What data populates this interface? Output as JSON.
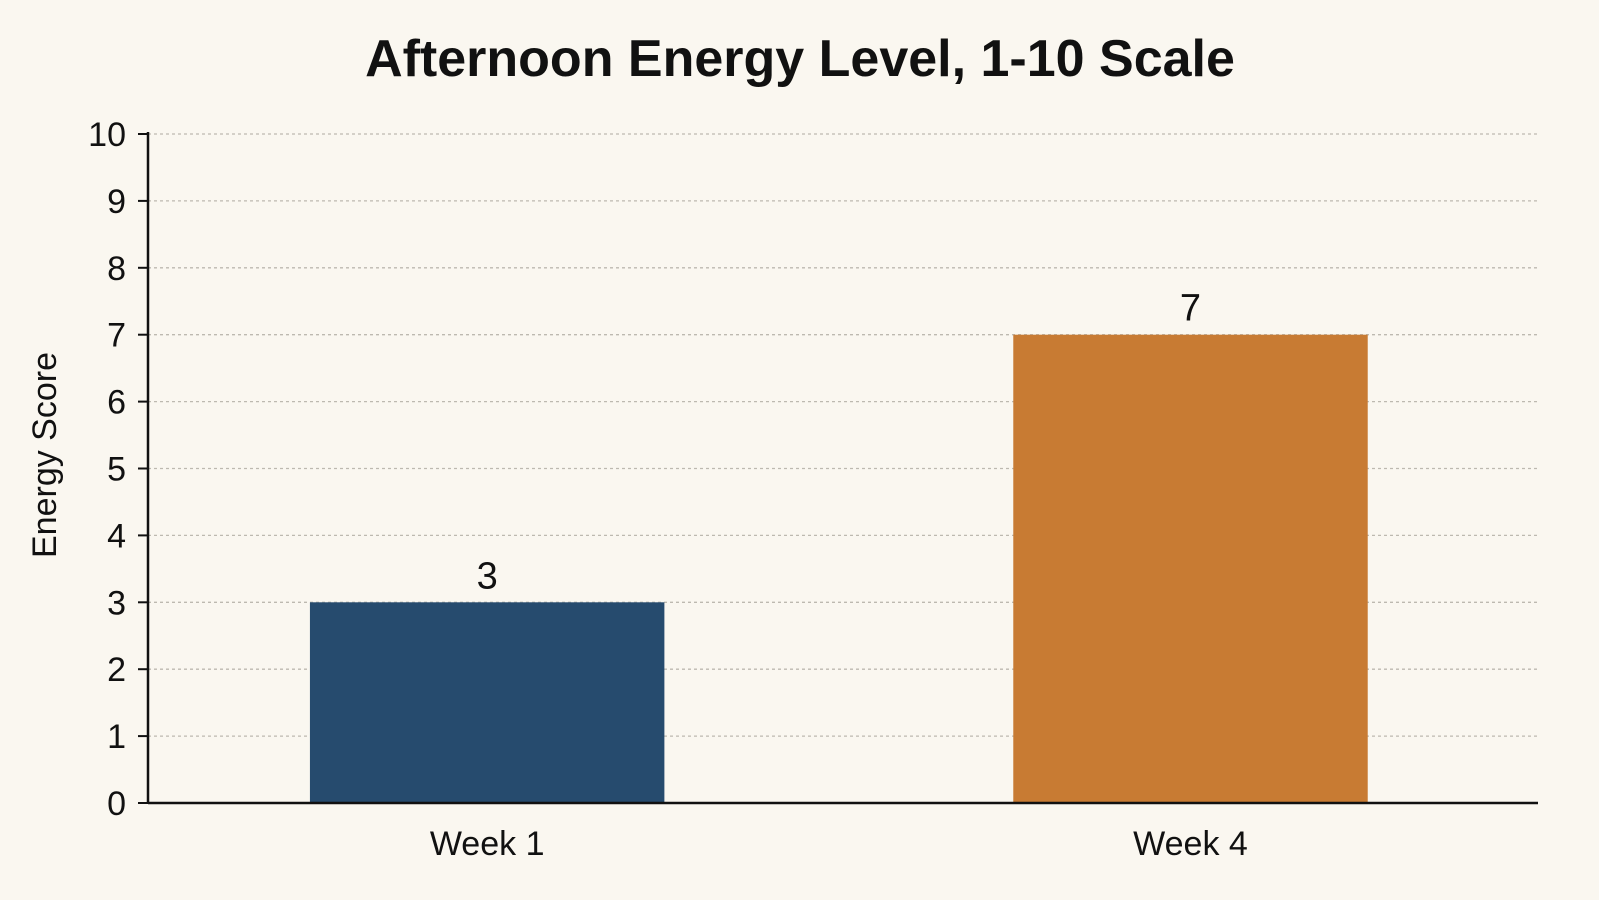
{
  "chart_data": {
    "type": "bar",
    "title": "Afternoon Energy Level, 1-10 Scale",
    "xlabel": "",
    "ylabel": "Energy Score",
    "categories": [
      "Week 1",
      "Week 4"
    ],
    "values": [
      3,
      7
    ],
    "data_labels": [
      "3",
      "7"
    ],
    "colors": [
      "#264b6e",
      "#c87b33"
    ],
    "ylim": [
      0,
      10
    ],
    "yticks": [
      0,
      1,
      2,
      3,
      4,
      5,
      6,
      7,
      8,
      9,
      10
    ],
    "ytick_labels": [
      "0",
      "1",
      "2",
      "3",
      "4",
      "5",
      "6",
      "7",
      "8",
      "9",
      "10"
    ],
    "grid": true,
    "legend": "none"
  }
}
